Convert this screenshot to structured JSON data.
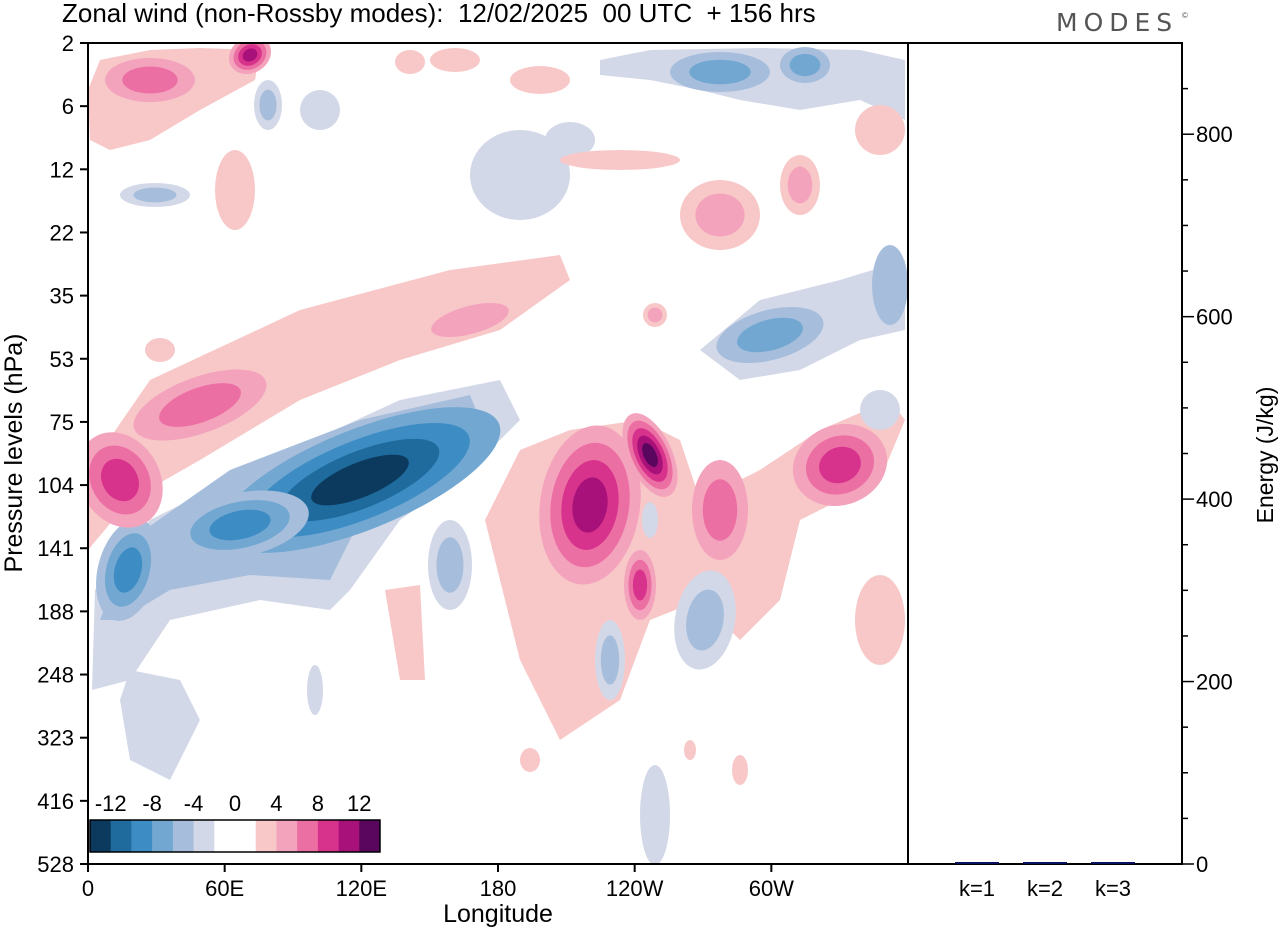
{
  "title": "Zonal wind (non-Rossby modes):  12/02/2025  00 UTC  + 156 hrs",
  "brand": "MODES",
  "brand_mark": "©",
  "chart_data": [
    {
      "type": "heatmap",
      "title": "Zonal wind (non-Rossby modes):  12/02/2025  00 UTC  + 156 hrs",
      "xlabel": "Longitude",
      "ylabel": "Pressure levels (hPa)",
      "xticks": [
        "0",
        "60E",
        "120E",
        "180",
        "120W",
        "60W"
      ],
      "yticks": [
        "2",
        "6",
        "12",
        "22",
        "35",
        "53",
        "75",
        "104",
        "141",
        "188",
        "248",
        "323",
        "416",
        "528"
      ],
      "colorbar": {
        "labels": [
          "-12",
          "-8",
          "-4",
          "0",
          "4",
          "8",
          "12"
        ],
        "colors": [
          "#0c3a5e",
          "#1f6b9e",
          "#3d8dc4",
          "#72a7d2",
          "#a6bedc",
          "#d3d8e8",
          "#ffffff",
          "#ffffff",
          "#f8c8c8",
          "#f4a3bd",
          "#ec6fa4",
          "#d8338c",
          "#a9117a",
          "#5a065f"
        ]
      },
      "features": [
        {
          "name": "neg-low-lat-jet",
          "sign": "negative",
          "peak": -14,
          "lon_range": [
            "0",
            "140E"
          ],
          "levels": [
            "75",
            "188"
          ]
        },
        {
          "name": "pos-band",
          "sign": "positive",
          "peak": 10,
          "lon_range": [
            "0",
            "180"
          ],
          "levels": [
            "22",
            "141"
          ]
        },
        {
          "name": "pos-central",
          "sign": "positive",
          "peak": 12,
          "lon_range": [
            "170W",
            "60W"
          ],
          "levels": [
            "75",
            "248"
          ]
        },
        {
          "name": "neg-upper-east",
          "sign": "negative",
          "peak": -6,
          "lon_range": [
            "120W",
            "0"
          ],
          "levels": [
            "2",
            "75"
          ]
        }
      ],
      "grid": false
    },
    {
      "type": "bar",
      "categories": [
        "k=1",
        "k=2",
        "k=3"
      ],
      "values": [
        2,
        1,
        1
      ],
      "ylabel": "Energy (J/kg)",
      "ylim": [
        0,
        900
      ],
      "yticks": [
        0,
        200,
        400,
        600,
        800
      ],
      "bar_color": "#0a1060"
    }
  ]
}
